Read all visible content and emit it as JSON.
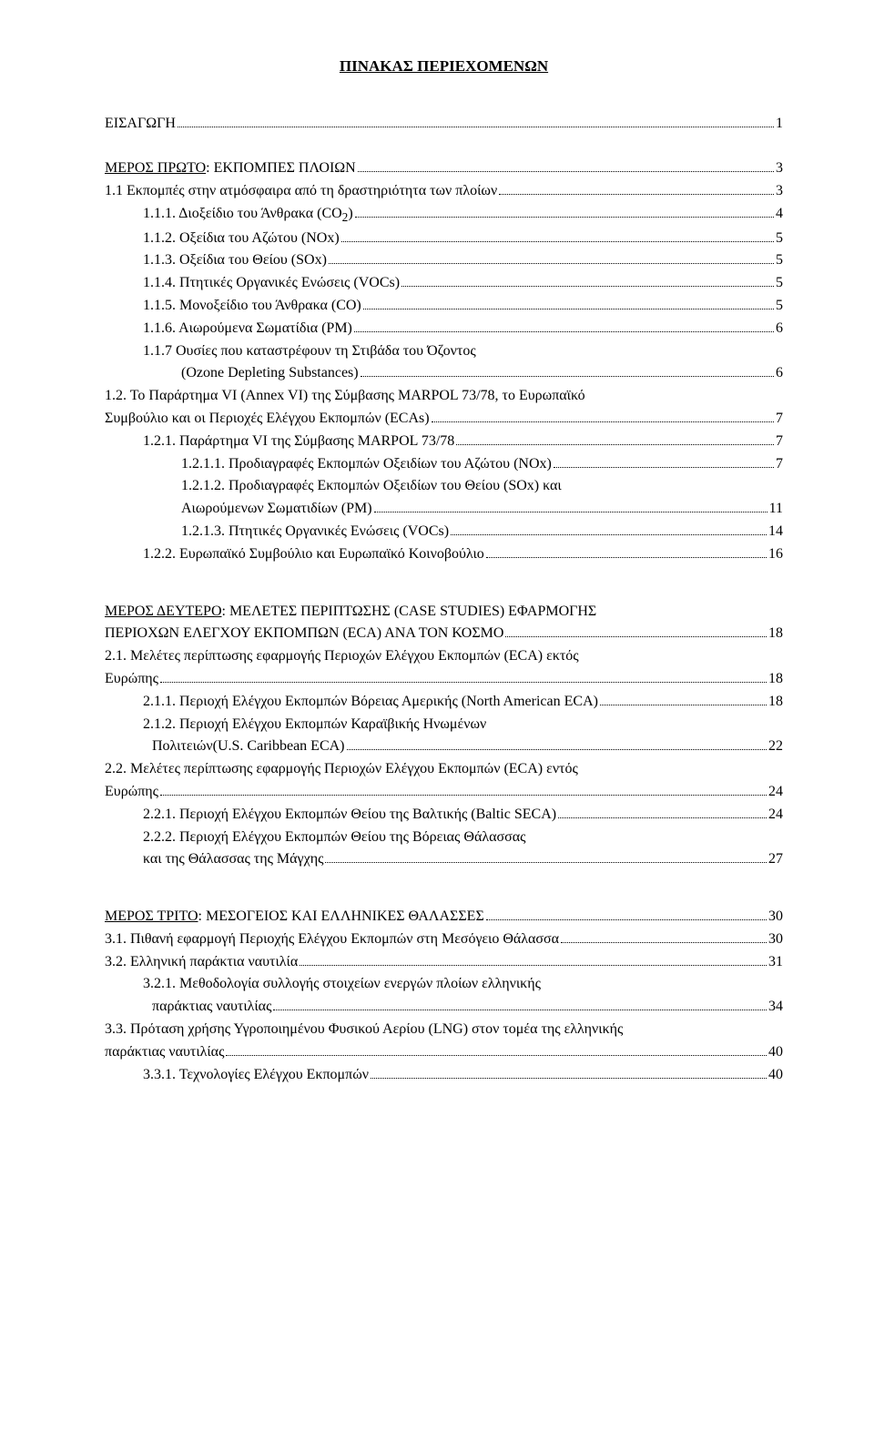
{
  "title": "ΠΙΝΑΚΑΣ ΠΕΡΙΕΧΟΜΕΝΩΝ",
  "entries": [
    {
      "text": "ΕΙΣΑΓΩΓΗ",
      "page": "1",
      "indent": 0
    },
    {
      "blank": true
    },
    {
      "prefix": "ΜΕΡΟΣ ΠΡΩΤΟ",
      "text": ": ΕΚΠΟΜΠΕΣ ΠΛΟΙΩΝ",
      "page": "3",
      "indent": 0,
      "underline_prefix": true
    },
    {
      "text": "1.1 Εκπομπές στην ατμόσφαιρα από τη δραστηριότητα των πλοίων",
      "page": "3",
      "indent": 0
    },
    {
      "text": "1.1.1. Διοξείδιο του Άνθρακα (CO",
      "sub": "2",
      "text2": ")",
      "page": "4",
      "indent": 1
    },
    {
      "text": "1.1.2. Οξείδια του Αζώτου (NOx)",
      "page": "5",
      "indent": 1
    },
    {
      "text": "1.1.3. Οξείδια του Θείου (SOx)",
      "page": "5",
      "indent": 1
    },
    {
      "text": "1.1.4. Πτητικές Οργανικές Ενώσεις (VOCs)",
      "page": "5",
      "indent": 1
    },
    {
      "text": "1.1.5. Μονοξείδιο του Άνθρακα (CO)",
      "page": "5",
      "indent": 1
    },
    {
      "text": "1.1.6. Αιωρούμενα Σωματίδια (PM)",
      "page": "6",
      "indent": 1
    },
    {
      "text": "1.1.7 Ουσίες που καταστρέφουν τη Στιβάδα του Όζοντος",
      "no_page": true,
      "indent": 1
    },
    {
      "text": "(Ozone Depleting Substances)",
      "page": "6",
      "indent": 2
    },
    {
      "text": "1.2. Το Παράρτημα VI (Annex VI) της Σύμβασης MARPOL 73/78, το Ευρωπαϊκό",
      "no_page": true,
      "indent": 0
    },
    {
      "text": "Συμβούλιο και οι Περιοχές Ελέγχου Εκπομπών (ECAs)",
      "page": "7",
      "indent": 0
    },
    {
      "text": "1.2.1. Παράρτημα VI της Σύμβασης MARPOL 73/78",
      "page": "7",
      "indent": 1
    },
    {
      "text": "1.2.1.1. Προδιαγραφές Εκπομπών Οξειδίων του Αζώτου (NOx)",
      "page": "7",
      "indent": 2
    },
    {
      "text": "1.2.1.2. Προδιαγραφές Εκπομπών Οξειδίων του Θείου (SOx) και",
      "no_page": true,
      "indent": 2
    },
    {
      "text": "Αιωρούμενων Σωματιδίων (PM)",
      "page": "11",
      "indent": 2
    },
    {
      "text": "1.2.1.3. Πτητικές Οργανικές Ενώσεις (VOCs)",
      "page": "14",
      "indent": 2
    },
    {
      "text": "1.2.2. Ευρωπαϊκό Συμβούλιο και Ευρωπαϊκό Κοινοβούλιο",
      "page": "16",
      "indent": 1
    },
    {
      "blank": "lg"
    },
    {
      "prefix": "ΜΕΡΟΣ ΔΕΥΤΕΡΟ",
      "text": ": ΜΕΛΕΤΕΣ ΠΕΡΙΠΤΩΣΗΣ (CASE STUDIES) ΕΦΑΡΜΟΓΗΣ",
      "no_page": true,
      "indent": 0,
      "underline_prefix": true
    },
    {
      "text": "ΠΕΡΙΟΧΩΝ ΕΛΕΓΧΟΥ ΕΚΠΟΜΠΩΝ (ECA) ΑΝΑ ΤΟΝ ΚΟΣΜΟ",
      "page": "18",
      "indent": 0
    },
    {
      "text": "2.1. Μελέτες περίπτωσης εφαρμογής Περιοχών Ελέγχου Εκπομπών (ECA) εκτός",
      "no_page": true,
      "indent": 0
    },
    {
      "text": "Ευρώπης",
      "page": "18",
      "indent": 0
    },
    {
      "text": "2.1.1. Περιοχή Ελέγχου Εκπομπών Βόρειας Αμερικής (North American ECA)",
      "page": "18",
      "indent": 1
    },
    {
      "text": "2.1.2. Περιοχή Ελέγχου Εκπομπών Καραϊβικής Ηνωμένων",
      "no_page": true,
      "indent": 1
    },
    {
      "text": "Πολιτειών(U.S. Caribbean ECA)",
      "page": "22",
      "indent": "s"
    },
    {
      "text": "2.2. Μελέτες περίπτωσης εφαρμογής Περιοχών Ελέγχου Εκπομπών (ECA) εντός",
      "no_page": true,
      "indent": 0
    },
    {
      "text": "Ευρώπης",
      "page": "24",
      "indent": 0
    },
    {
      "text": "2.2.1. Περιοχή Ελέγχου Εκπομπών Θείου της Βαλτικής (Baltic SECA)",
      "page": "24",
      "indent": 1
    },
    {
      "text": "2.2.2. Περιοχή Ελέγχου Εκπομπών Θείου της Βόρειας Θάλασσας",
      "no_page": true,
      "indent": 1
    },
    {
      "text": "και της Θάλασσας της Μάγχης",
      "page": "27",
      "indent": 1
    },
    {
      "blank": "lg"
    },
    {
      "prefix": "ΜΕΡΟΣ ΤΡΙΤΟ",
      "text": ": ΜΕΣΟΓΕΙΟΣ ΚΑΙ ΕΛΛΗΝΙΚΕΣ ΘΑΛΑΣΣΕΣ",
      "page": "30",
      "indent": 0,
      "underline_prefix": true
    },
    {
      "text": "3.1. Πιθανή εφαρμογή Περιοχής Ελέγχου Εκπομπών στη Μεσόγειο Θάλασσα",
      "page": "30",
      "indent": 0
    },
    {
      "text": "3.2. Ελληνική παράκτια ναυτιλία",
      "page": "31",
      "indent": 0
    },
    {
      "text": "3.2.1. Μεθοδολογία συλλογής στοιχείων ενεργών πλοίων ελληνικής",
      "no_page": true,
      "indent": 1
    },
    {
      "text": "παράκτιας ναυτιλίας",
      "page": "34",
      "indent": "s"
    },
    {
      "text": "3.3. Πρόταση χρήσης Υγροποιημένου Φυσικού Αερίου (LNG) στον τομέα της ελληνικής",
      "no_page": true,
      "indent": 0
    },
    {
      "text": "παράκτιας ναυτιλίας",
      "page": "40",
      "indent": 0
    },
    {
      "text": "3.3.1. Τεχνολογίες Ελέγχου Εκπομπών",
      "page": "40",
      "indent": 1
    }
  ]
}
